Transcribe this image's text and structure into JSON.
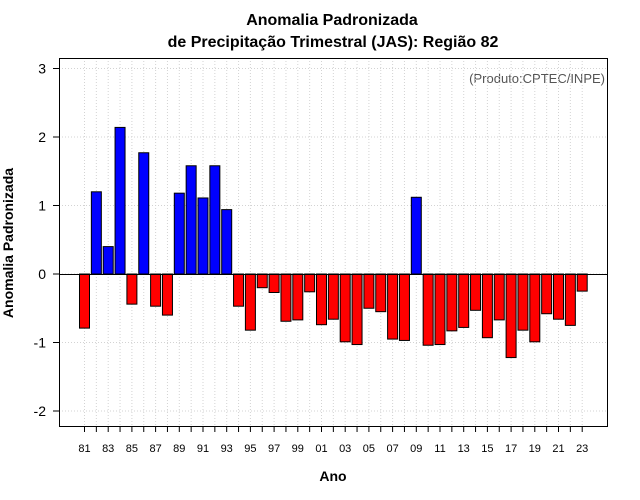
{
  "chart_data": {
    "type": "bar",
    "title_line1": "Anomalia Padronizada",
    "title_line2": "de Precipitação Trimestral (JAS): Região 82",
    "xlabel": "Ano",
    "ylabel": "Anomalia Padronizada",
    "credit": "(Produto:CPTEC/INPE)",
    "ylim": [
      -2.2,
      3.15
    ],
    "yticks": [
      -2,
      -1,
      0,
      1,
      2,
      3
    ],
    "ytick_labels": [
      "-2",
      "-1",
      "0",
      "1",
      "2",
      "3"
    ],
    "xtick_labels": [
      "81",
      "83",
      "85",
      "87",
      "89",
      "91",
      "93",
      "95",
      "97",
      "99",
      "01",
      "03",
      "05",
      "07",
      "09",
      "11",
      "13",
      "15",
      "17",
      "19",
      "21",
      "23"
    ],
    "positive_color": "#0000ff",
    "negative_color": "#ff0000",
    "categories": [
      "1981",
      "1982",
      "1983",
      "1984",
      "1985",
      "1986",
      "1987",
      "1988",
      "1989",
      "1990",
      "1991",
      "1992",
      "1993",
      "1994",
      "1995",
      "1996",
      "1997",
      "1998",
      "1999",
      "2000",
      "2001",
      "2002",
      "2003",
      "2004",
      "2005",
      "2006",
      "2007",
      "2008",
      "2009",
      "2010",
      "2011",
      "2012",
      "2013",
      "2014",
      "2015",
      "2016",
      "2017",
      "2018",
      "2019",
      "2020",
      "2021",
      "2022",
      "2023"
    ],
    "values": [
      -0.79,
      1.2,
      0.4,
      2.14,
      -0.44,
      1.77,
      -0.47,
      -0.6,
      1.18,
      1.58,
      1.11,
      1.58,
      0.94,
      -0.47,
      -0.82,
      -0.2,
      -0.27,
      -0.69,
      -0.67,
      -0.26,
      -0.74,
      -0.66,
      -0.99,
      -1.03,
      -0.5,
      -0.55,
      -0.95,
      -0.97,
      1.12,
      -1.04,
      -1.03,
      -0.83,
      -0.78,
      -0.53,
      -0.93,
      -0.67,
      -1.22,
      -0.82,
      -0.99,
      -0.58,
      -0.66,
      -0.75,
      -0.25
    ]
  }
}
